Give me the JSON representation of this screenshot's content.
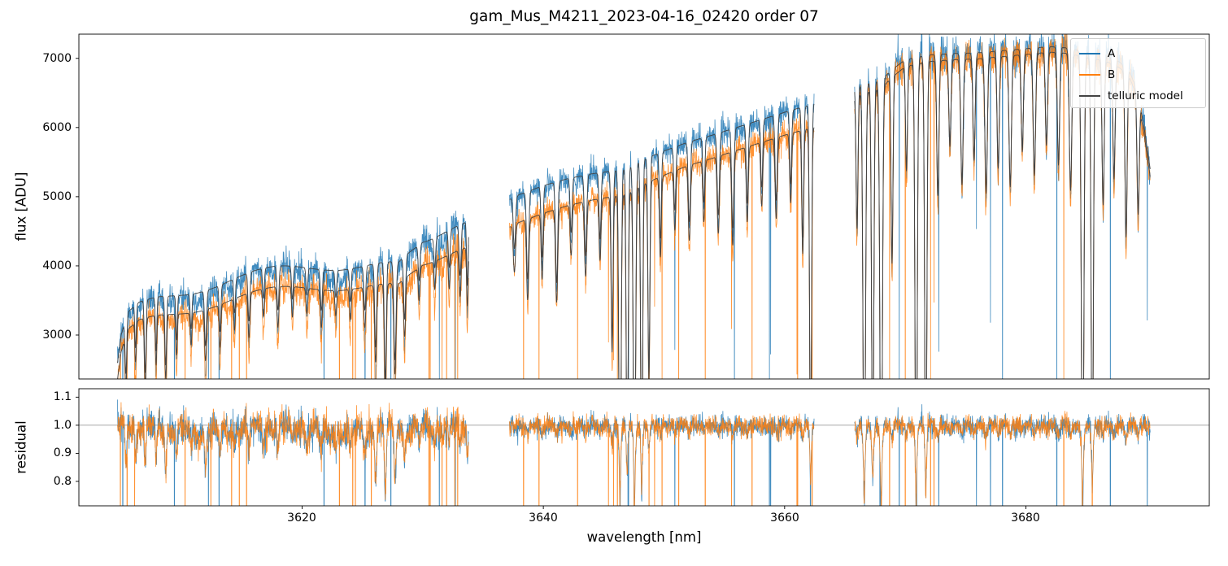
{
  "chart_data": {
    "type": "line",
    "title": "gam_Mus_M4211_2023-04-16_02420  order 07",
    "xlabel": "wavelength [nm]",
    "xlim": [
      3601.5,
      3695.2
    ],
    "xticks": [
      3620,
      3640,
      3660,
      3680
    ],
    "xtick_labels": [
      "3620",
      "3640",
      "3660",
      "3680"
    ],
    "panels": [
      {
        "name": "flux",
        "ylabel": "flux [ADU]",
        "ylim": [
          2365,
          7350
        ],
        "yticks": [
          3000,
          4000,
          5000,
          6000,
          7000
        ],
        "ytick_labels": [
          "3000",
          "4000",
          "5000",
          "6000",
          "7000"
        ]
      },
      {
        "name": "residual",
        "ylabel": "residual",
        "ylim": [
          0.713,
          1.13
        ],
        "yticks": [
          0.8,
          0.9,
          1.0,
          1.1
        ],
        "ytick_labels": [
          "0.8",
          "0.9",
          "1.0",
          "1.1"
        ],
        "hline": 1.0,
        "hline_color": "#8a8a8a"
      }
    ],
    "legend": [
      {
        "label": "A",
        "color": "#1f77b4"
      },
      {
        "label": "B",
        "color": "#ff7f0e"
      },
      {
        "label": "telluric model",
        "color": "#444444"
      }
    ],
    "segments": [
      {
        "x_start": 3604.7,
        "x_end": 3633.8,
        "residual_gamma": 1.5,
        "wiggle_amp": 0.022,
        "noise_scale": 1.6
      },
      {
        "x_start": 3637.2,
        "x_end": 3662.45,
        "residual_gamma": 1.12,
        "wiggle_amp": 0.004,
        "noise_scale": 1.0
      },
      {
        "x_start": 3665.8,
        "x_end": 3690.3,
        "residual_gamma": 1.12,
        "wiggle_amp": 0.004,
        "noise_scale": 1.0
      }
    ],
    "continuum_A": [
      [
        3604.7,
        2600
      ],
      [
        3605.0,
        3000
      ],
      [
        3605.5,
        3330
      ],
      [
        3606.5,
        3500
      ],
      [
        3608,
        3620
      ],
      [
        3610,
        3730
      ],
      [
        3612,
        3830
      ],
      [
        3614,
        3900
      ],
      [
        3616,
        3970
      ],
      [
        3618,
        4030
      ],
      [
        3620,
        4070
      ],
      [
        3622,
        4110
      ],
      [
        3624,
        4130
      ],
      [
        3626,
        4120
      ],
      [
        3628,
        4110
      ],
      [
        3629,
        4300
      ],
      [
        3630,
        4470
      ],
      [
        3631,
        4540
      ],
      [
        3632,
        4580
      ],
      [
        3633,
        4620
      ],
      [
        3633.8,
        4660
      ],
      [
        3637.2,
        4960
      ],
      [
        3638,
        5030
      ],
      [
        3640,
        5160
      ],
      [
        3642,
        5260
      ],
      [
        3644,
        5330
      ],
      [
        3646,
        5380
      ],
      [
        3647,
        5420
      ],
      [
        3648,
        5520
      ],
      [
        3650,
        5660
      ],
      [
        3652,
        5790
      ],
      [
        3654,
        5890
      ],
      [
        3656,
        6000
      ],
      [
        3658,
        6110
      ],
      [
        3660,
        6220
      ],
      [
        3662.5,
        6350
      ],
      [
        3665.8,
        6600
      ],
      [
        3667,
        6650
      ],
      [
        3668,
        6690
      ],
      [
        3669,
        6850
      ],
      [
        3670,
        6980
      ],
      [
        3671,
        7020
      ],
      [
        3672,
        7050
      ],
      [
        3674,
        7070
      ],
      [
        3676,
        7080
      ],
      [
        3678,
        7110
      ],
      [
        3680,
        7140
      ],
      [
        3682,
        7170
      ],
      [
        3683.5,
        7150
      ],
      [
        3685,
        7090
      ],
      [
        3686.5,
        7040
      ],
      [
        3687.5,
        6980
      ],
      [
        3688.5,
        6850
      ],
      [
        3689.3,
        6500
      ],
      [
        3689.8,
        6000
      ],
      [
        3690.3,
        5400
      ]
    ],
    "continuum_B_offset": [
      [
        3604.7,
        -240
      ],
      [
        3608,
        -270
      ],
      [
        3612,
        -290
      ],
      [
        3616,
        -300
      ],
      [
        3620,
        -300
      ],
      [
        3624,
        -310
      ],
      [
        3628,
        -320
      ],
      [
        3631,
        -350
      ],
      [
        3633.8,
        -370
      ],
      [
        3637.2,
        -400
      ],
      [
        3640,
        -400
      ],
      [
        3644,
        -380
      ],
      [
        3648,
        -360
      ],
      [
        3652,
        -340
      ],
      [
        3656,
        -330
      ],
      [
        3660,
        -330
      ],
      [
        3662.5,
        -340
      ],
      [
        3665.8,
        -130
      ],
      [
        3668,
        -120
      ],
      [
        3670,
        -100
      ],
      [
        3674,
        -90
      ],
      [
        3678,
        -85
      ],
      [
        3682,
        -80
      ],
      [
        3686,
        -75
      ],
      [
        3689,
        -90
      ],
      [
        3690.3,
        -110
      ]
    ],
    "telluric_lines": [
      [
        3611.5,
        0.05,
        2.5
      ],
      [
        3623.0,
        0.045,
        2.5
      ],
      [
        3630.5,
        0.03,
        1.5
      ],
      [
        3605.4,
        0.25,
        0.07
      ],
      [
        3606.2,
        0.18,
        0.06
      ],
      [
        3607.0,
        0.3,
        0.07
      ],
      [
        3607.9,
        0.22,
        0.06
      ],
      [
        3608.7,
        0.28,
        0.07
      ],
      [
        3609.6,
        0.18,
        0.06
      ],
      [
        3610.8,
        0.14,
        0.07
      ],
      [
        3612.0,
        0.22,
        0.08
      ],
      [
        3613.2,
        0.18,
        0.07
      ],
      [
        3614.4,
        0.13,
        0.07
      ],
      [
        3615.6,
        0.18,
        0.08
      ],
      [
        3616.8,
        0.11,
        0.07
      ],
      [
        3618.0,
        0.16,
        0.08
      ],
      [
        3619.2,
        0.12,
        0.07
      ],
      [
        3620.4,
        0.1,
        0.07
      ],
      [
        3621.6,
        0.15,
        0.08
      ],
      [
        3622.8,
        0.1,
        0.07
      ],
      [
        3624.0,
        0.12,
        0.07
      ],
      [
        3625.2,
        0.16,
        0.08
      ],
      [
        3626.1,
        0.3,
        0.08
      ],
      [
        3626.9,
        0.42,
        0.08
      ],
      [
        3627.7,
        0.35,
        0.09
      ],
      [
        3628.5,
        0.22,
        0.08
      ],
      [
        3629.7,
        0.12,
        0.07
      ],
      [
        3631.0,
        0.1,
        0.07
      ],
      [
        3632.2,
        0.12,
        0.07
      ],
      [
        3633.1,
        0.16,
        0.08
      ],
      [
        3633.7,
        0.2,
        0.06
      ],
      [
        3637.6,
        0.15,
        0.09
      ],
      [
        3638.7,
        0.25,
        0.09
      ],
      [
        3639.9,
        0.2,
        0.08
      ],
      [
        3641.1,
        0.28,
        0.09
      ],
      [
        3642.3,
        0.15,
        0.08
      ],
      [
        3643.5,
        0.22,
        0.09
      ],
      [
        3644.7,
        0.18,
        0.08
      ],
      [
        3645.7,
        0.45,
        0.08
      ],
      [
        3646.35,
        0.96,
        0.09
      ],
      [
        3646.95,
        0.8,
        0.08
      ],
      [
        3647.55,
        0.97,
        0.09
      ],
      [
        3648.15,
        0.88,
        0.08
      ],
      [
        3648.75,
        0.55,
        0.08
      ],
      [
        3649.7,
        0.22,
        0.08
      ],
      [
        3650.9,
        0.16,
        0.08
      ],
      [
        3652.1,
        0.2,
        0.09
      ],
      [
        3653.3,
        0.16,
        0.08
      ],
      [
        3654.5,
        0.2,
        0.09
      ],
      [
        3655.7,
        0.24,
        0.09
      ],
      [
        3656.9,
        0.19,
        0.08
      ],
      [
        3658.1,
        0.16,
        0.08
      ],
      [
        3659.3,
        0.2,
        0.09
      ],
      [
        3660.5,
        0.17,
        0.08
      ],
      [
        3661.5,
        0.3,
        0.08
      ],
      [
        3662.15,
        0.8,
        0.08
      ],
      [
        3666.0,
        0.3,
        0.08
      ],
      [
        3666.6,
        0.95,
        0.1
      ],
      [
        3667.3,
        0.85,
        0.09
      ],
      [
        3668.0,
        0.97,
        0.1
      ],
      [
        3668.9,
        0.4,
        0.08
      ],
      [
        3670.1,
        0.22,
        0.08
      ],
      [
        3670.9,
        0.95,
        0.09
      ],
      [
        3671.7,
        0.9,
        0.09
      ],
      [
        3672.7,
        0.28,
        0.09
      ],
      [
        3673.7,
        0.18,
        0.09
      ],
      [
        3674.7,
        0.26,
        0.1
      ],
      [
        3675.7,
        0.21,
        0.09
      ],
      [
        3676.7,
        0.28,
        0.1
      ],
      [
        3677.7,
        0.23,
        0.09
      ],
      [
        3678.7,
        0.27,
        0.1
      ],
      [
        3679.7,
        0.2,
        0.09
      ],
      [
        3680.7,
        0.25,
        0.1
      ],
      [
        3681.7,
        0.19,
        0.09
      ],
      [
        3682.7,
        0.23,
        0.09
      ],
      [
        3683.7,
        0.28,
        0.1
      ],
      [
        3684.7,
        0.97,
        0.1
      ],
      [
        3685.5,
        0.88,
        0.09
      ],
      [
        3686.4,
        0.3,
        0.09
      ],
      [
        3687.3,
        0.24,
        0.09
      ],
      [
        3688.3,
        0.35,
        0.09
      ],
      [
        3689.3,
        0.26,
        0.09
      ]
    ],
    "noise": {
      "seed": 7,
      "rel_sigma": 0.018,
      "add_sigma_adu": 18,
      "spike_prob_A": 0.0035,
      "spike_prob_B": 0.009
    },
    "sample_step_nm": 0.02
  }
}
